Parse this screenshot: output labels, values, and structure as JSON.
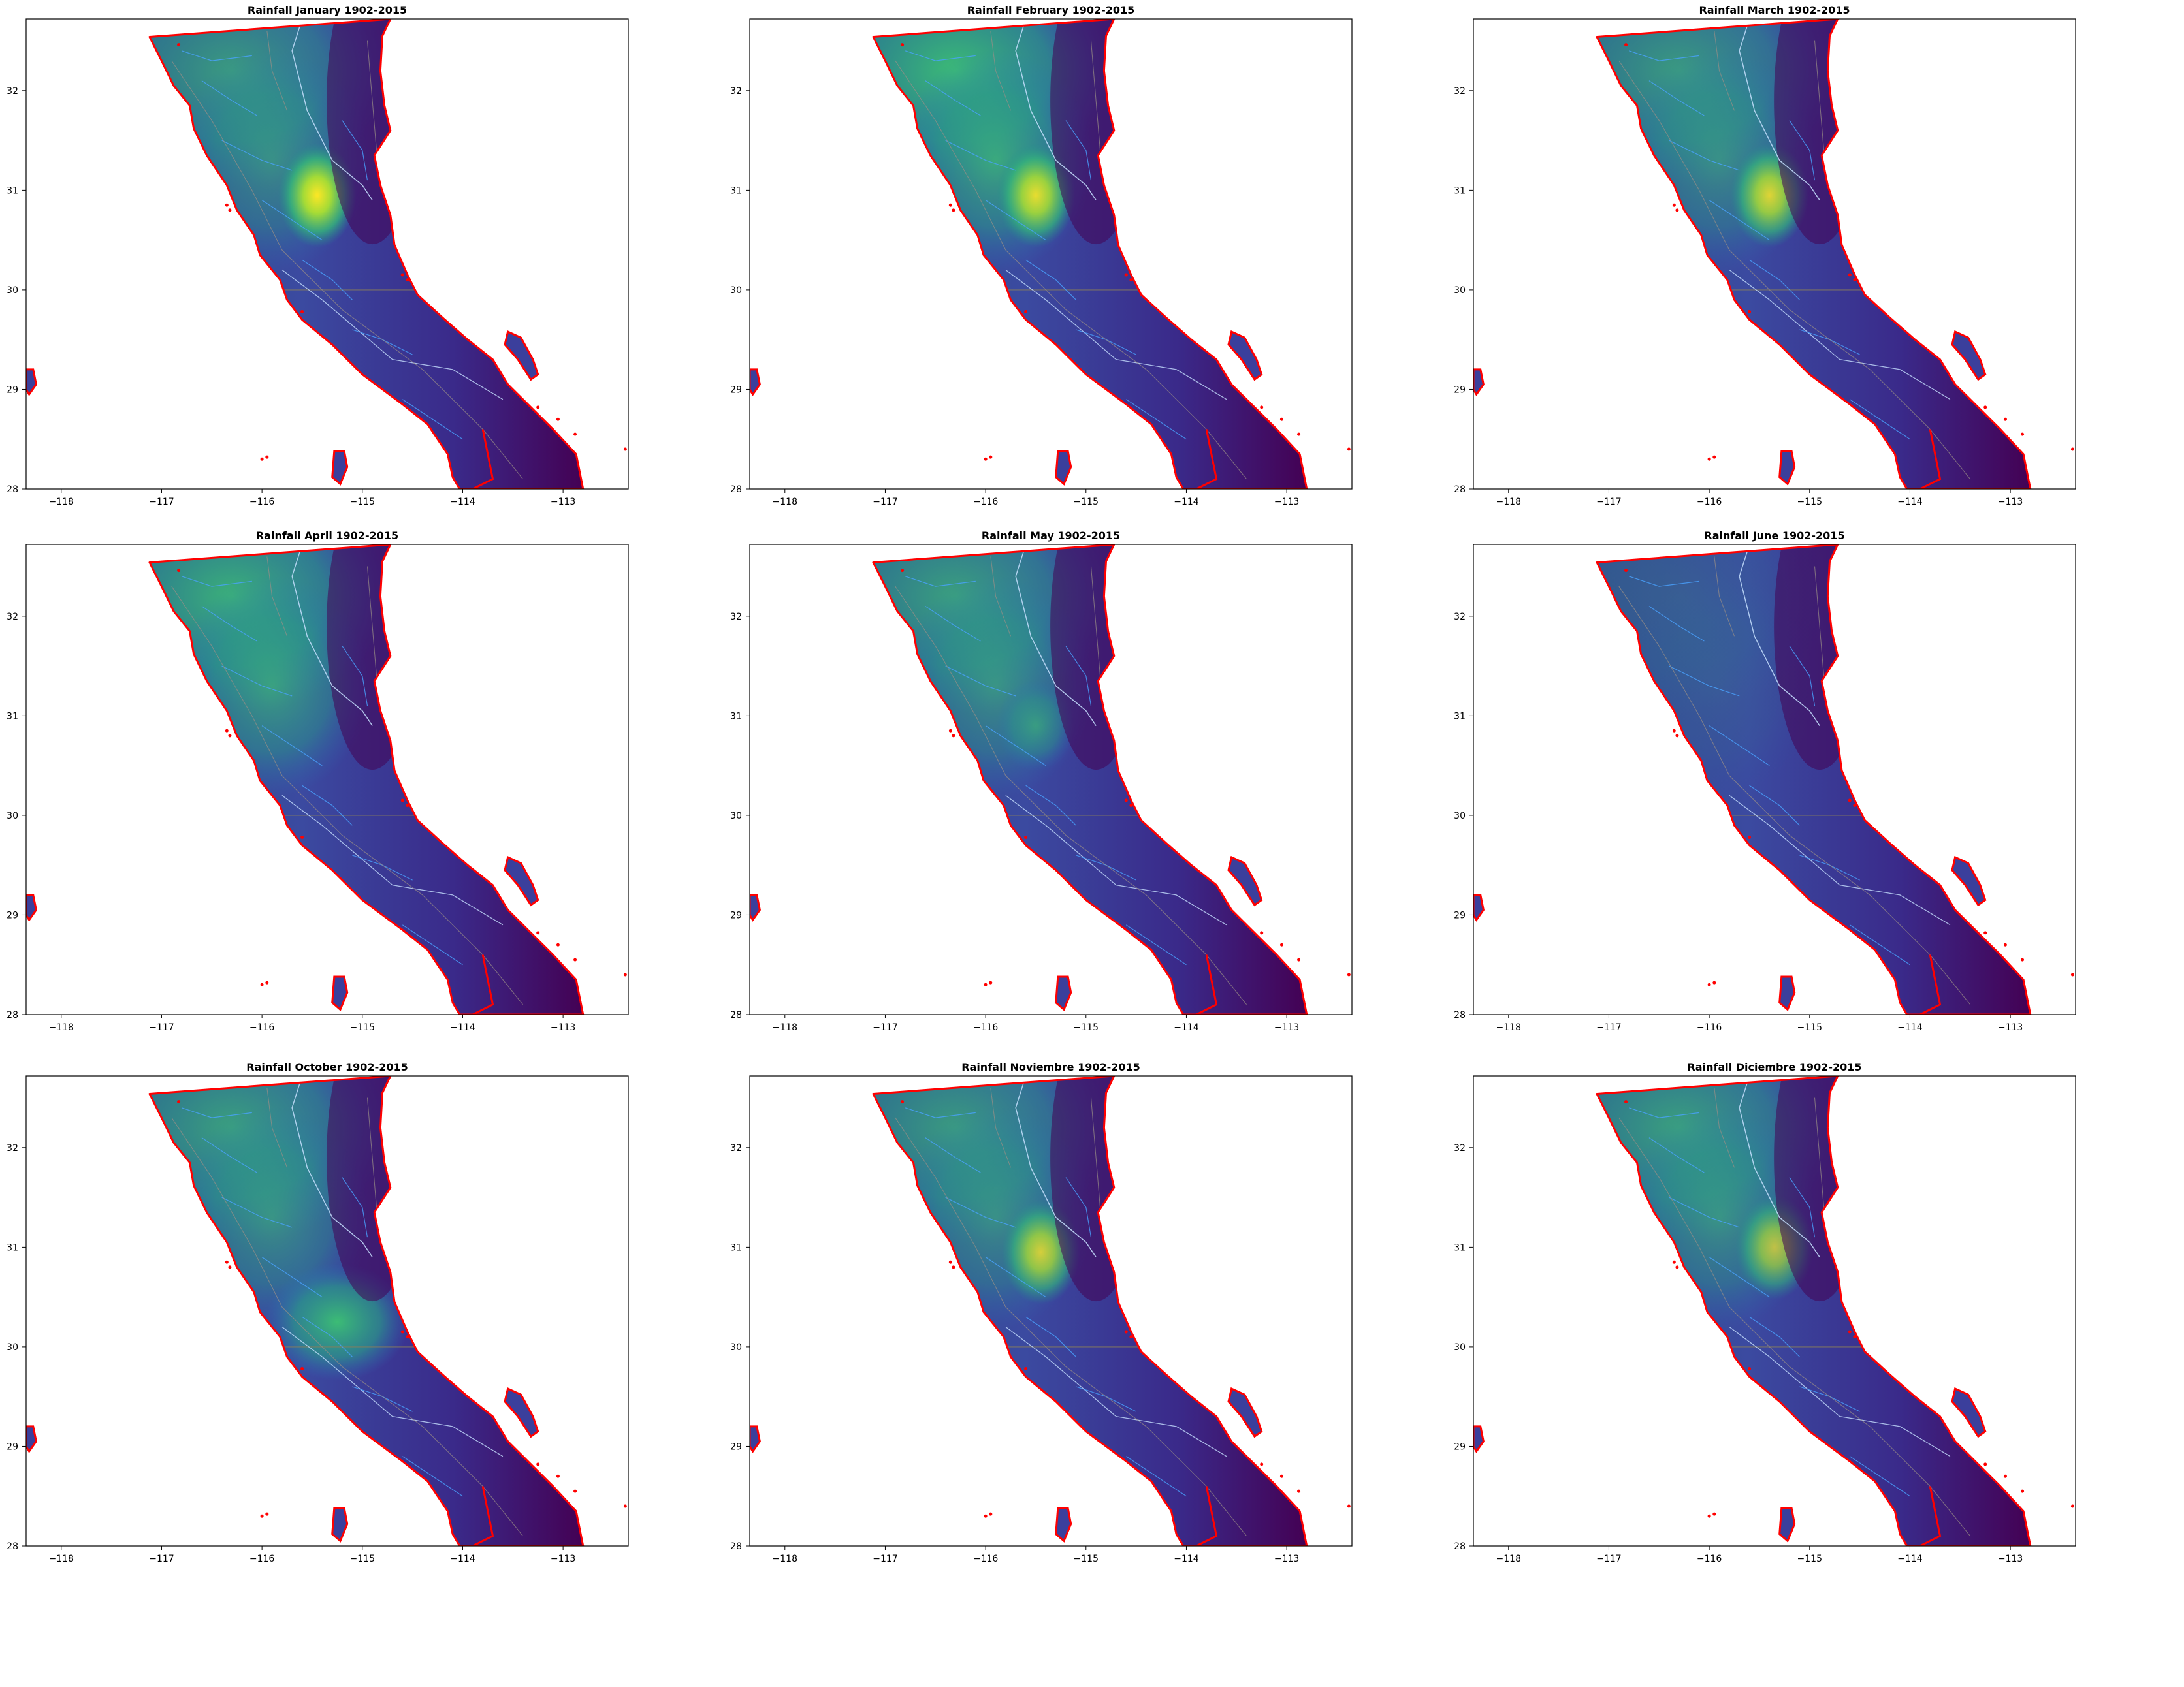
{
  "panels": [
    {
      "title": "Rainfall January 1902-2015"
    },
    {
      "title": "Rainfall February 1902-2015"
    },
    {
      "title": "Rainfall March 1902-2015"
    },
    {
      "title": "Rainfall April 1902-2015"
    },
    {
      "title": "Rainfall May 1902-2015"
    },
    {
      "title": "Rainfall June 1902-2015"
    },
    {
      "title": "Rainfall October 1902-2015"
    },
    {
      "title": "Rainfall Noviembre 1902-2015"
    },
    {
      "title": "Rainfall Diciembre 1902-2015"
    }
  ],
  "axes": {
    "x_ticks": [
      "−118",
      "−117",
      "−116",
      "−115",
      "−114",
      "−113"
    ],
    "y_ticks": [
      "28",
      "29",
      "30",
      "31",
      "32"
    ]
  },
  "colors": {
    "low": "#440154",
    "mid_low": "#3b3f9c",
    "mid": "#2a72b8",
    "mid_high": "#21a685",
    "high": "#fde725",
    "coast": "#ff0000",
    "rivers": "#4aa3ff",
    "borders": "#c7e0ff",
    "roads": "#9a8f86"
  },
  "color_scale": "viridis"
}
